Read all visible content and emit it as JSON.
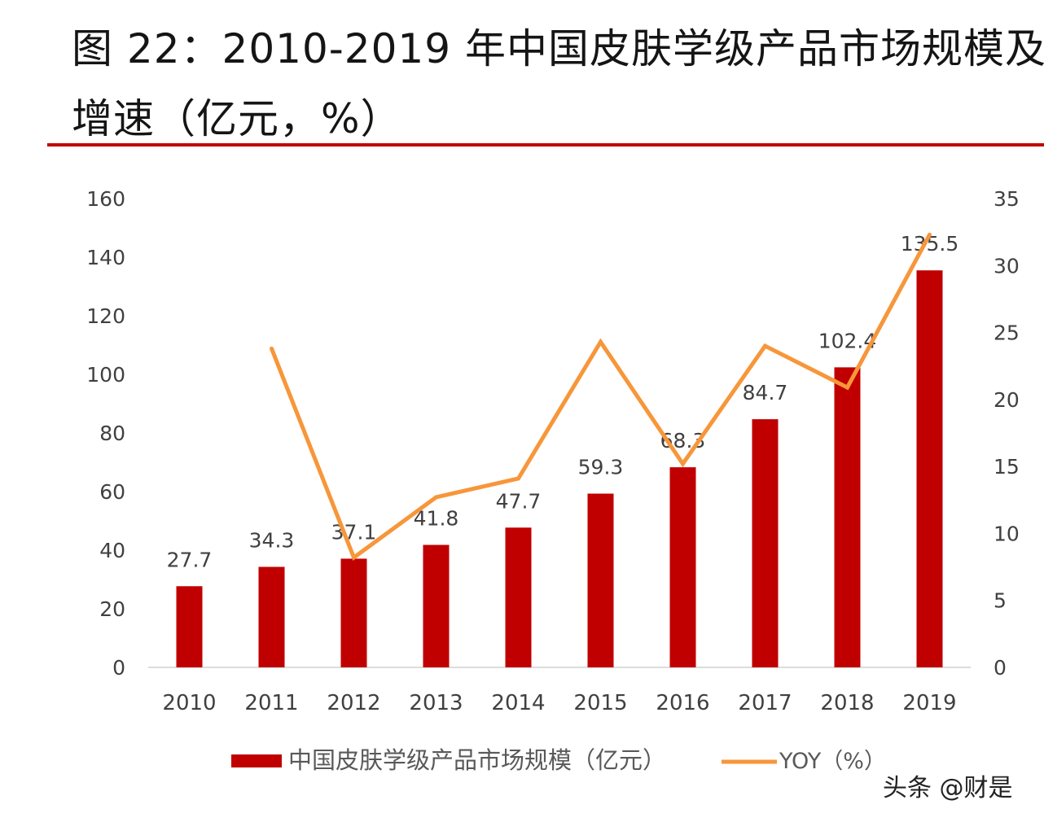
{
  "header": {
    "title_line1": "图 22：2010-2019 年中国皮肤学级产品市场规模及",
    "title_line2": "增速（亿元，%）"
  },
  "colors": {
    "bar": "#c00000",
    "line": "#f7963a",
    "rule": "#c00000",
    "axis": "#d0d0d0",
    "text": "#404040"
  },
  "chart_data": {
    "type": "bar",
    "categories": [
      "2010",
      "2011",
      "2012",
      "2013",
      "2014",
      "2015",
      "2016",
      "2017",
      "2018",
      "2019"
    ],
    "series": [
      {
        "name": "中国皮肤学级产品市场规模（亿元）",
        "type": "bar",
        "axis": "left",
        "values": [
          27.7,
          34.3,
          37.1,
          41.8,
          47.7,
          59.3,
          68.3,
          84.7,
          102.4,
          135.5
        ],
        "labels": [
          "27.7",
          "34.3",
          "37.1",
          "41.8",
          "47.7",
          "59.3",
          "68.3",
          "84.7",
          "102.4",
          "135.5"
        ]
      },
      {
        "name": "YOY（%）",
        "type": "line",
        "axis": "right",
        "values": [
          null,
          23.8,
          8.2,
          12.7,
          14.1,
          24.3,
          15.2,
          24.0,
          20.9,
          32.3
        ]
      }
    ],
    "y_left": {
      "range": [
        0,
        160
      ],
      "ticks": [
        "0",
        "20",
        "40",
        "60",
        "80",
        "100",
        "120",
        "140",
        "160"
      ]
    },
    "y_right": {
      "range": [
        0,
        35
      ],
      "ticks": [
        "0",
        "5",
        "10",
        "15",
        "20",
        "25",
        "30",
        "35"
      ]
    },
    "grid": false,
    "legend_position": "bottom"
  },
  "watermark": "头条 @财是"
}
